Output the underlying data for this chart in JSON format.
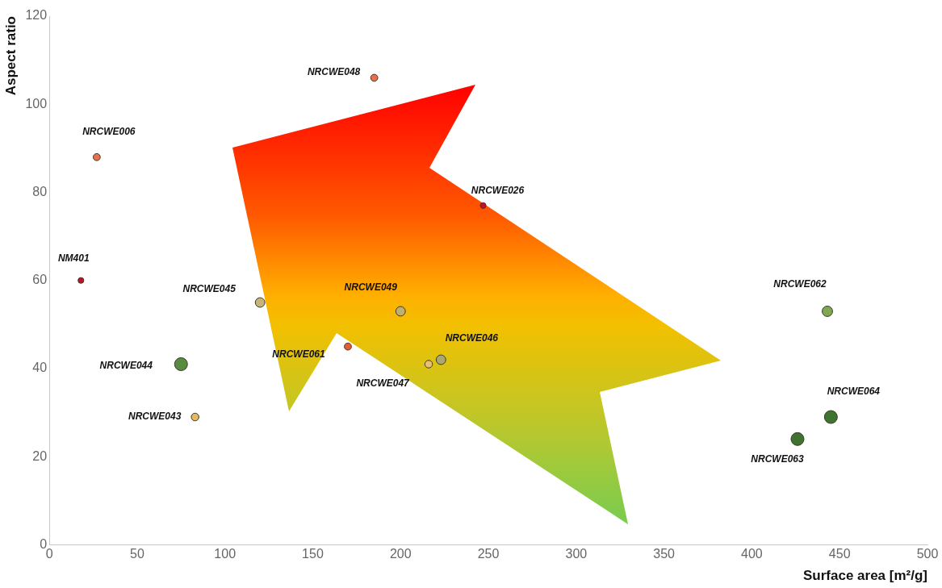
{
  "chart_data": {
    "type": "bubble",
    "xlabel": "Surface area [m²/g]",
    "ylabel": "Aspect ratio",
    "xlim": [
      0,
      500
    ],
    "xticks": [
      0,
      50,
      100,
      150,
      200,
      250,
      300,
      350,
      400,
      450,
      500
    ],
    "ylim": [
      0,
      120
    ],
    "yticks": [
      0,
      20,
      40,
      60,
      80,
      100,
      120
    ],
    "series": [
      {
        "name": "NM401",
        "color": "#c0102a",
        "x": [
          18
        ],
        "values": [
          60
        ],
        "sizes": [
          0.2
        ]
      },
      {
        "name": "NRCWE006",
        "color": "#e8704a",
        "x": [
          27
        ],
        "values": [
          88
        ],
        "sizes": [
          0.3
        ]
      },
      {
        "name": "NRCWE048",
        "color": "#e8704a",
        "x": [
          185
        ],
        "values": [
          106
        ],
        "sizes": [
          0.3
        ]
      },
      {
        "name": "NRCWE026",
        "color": "#c0102a",
        "x": [
          247
        ],
        "values": [
          77
        ],
        "sizes": [
          0.2
        ]
      },
      {
        "name": "NRCWE045",
        "color": "#c8b478",
        "x": [
          120
        ],
        "values": [
          55
        ],
        "sizes": [
          0.55
        ]
      },
      {
        "name": "NRCWE049",
        "color": "#c0b070",
        "x": [
          200
        ],
        "values": [
          53
        ],
        "sizes": [
          0.55
        ]
      },
      {
        "name": "NRCWE062",
        "color": "#80a850",
        "x": [
          443
        ],
        "values": [
          53
        ],
        "sizes": [
          0.65
        ]
      },
      {
        "name": "NRCWE044",
        "color": "#5a8a40",
        "x": [
          75
        ],
        "values": [
          41
        ],
        "sizes": [
          1
        ]
      },
      {
        "name": "NRCWE061",
        "color": "#e85a30",
        "x": [
          170
        ],
        "values": [
          45
        ],
        "sizes": [
          0.3
        ]
      },
      {
        "name": "NRCWE047",
        "color": "#e8c070",
        "x": [
          216
        ],
        "values": [
          41
        ],
        "sizes": [
          0.35
        ]
      },
      {
        "name": "NRCWE046",
        "color": "#a8a870",
        "x": [
          223
        ],
        "values": [
          42
        ],
        "sizes": [
          0.55
        ]
      },
      {
        "name": "NRCWE043",
        "color": "#e8b860",
        "x": [
          83
        ],
        "values": [
          29
        ],
        "sizes": [
          0.35
        ]
      },
      {
        "name": "NRCWE063",
        "color": "#3f7430",
        "x": [
          426
        ],
        "values": [
          24
        ],
        "sizes": [
          1
        ]
      },
      {
        "name": "NRCWE064",
        "color": "#3f7430",
        "x": [
          445
        ],
        "values": [
          29
        ],
        "sizes": [
          1
        ]
      }
    ]
  }
}
